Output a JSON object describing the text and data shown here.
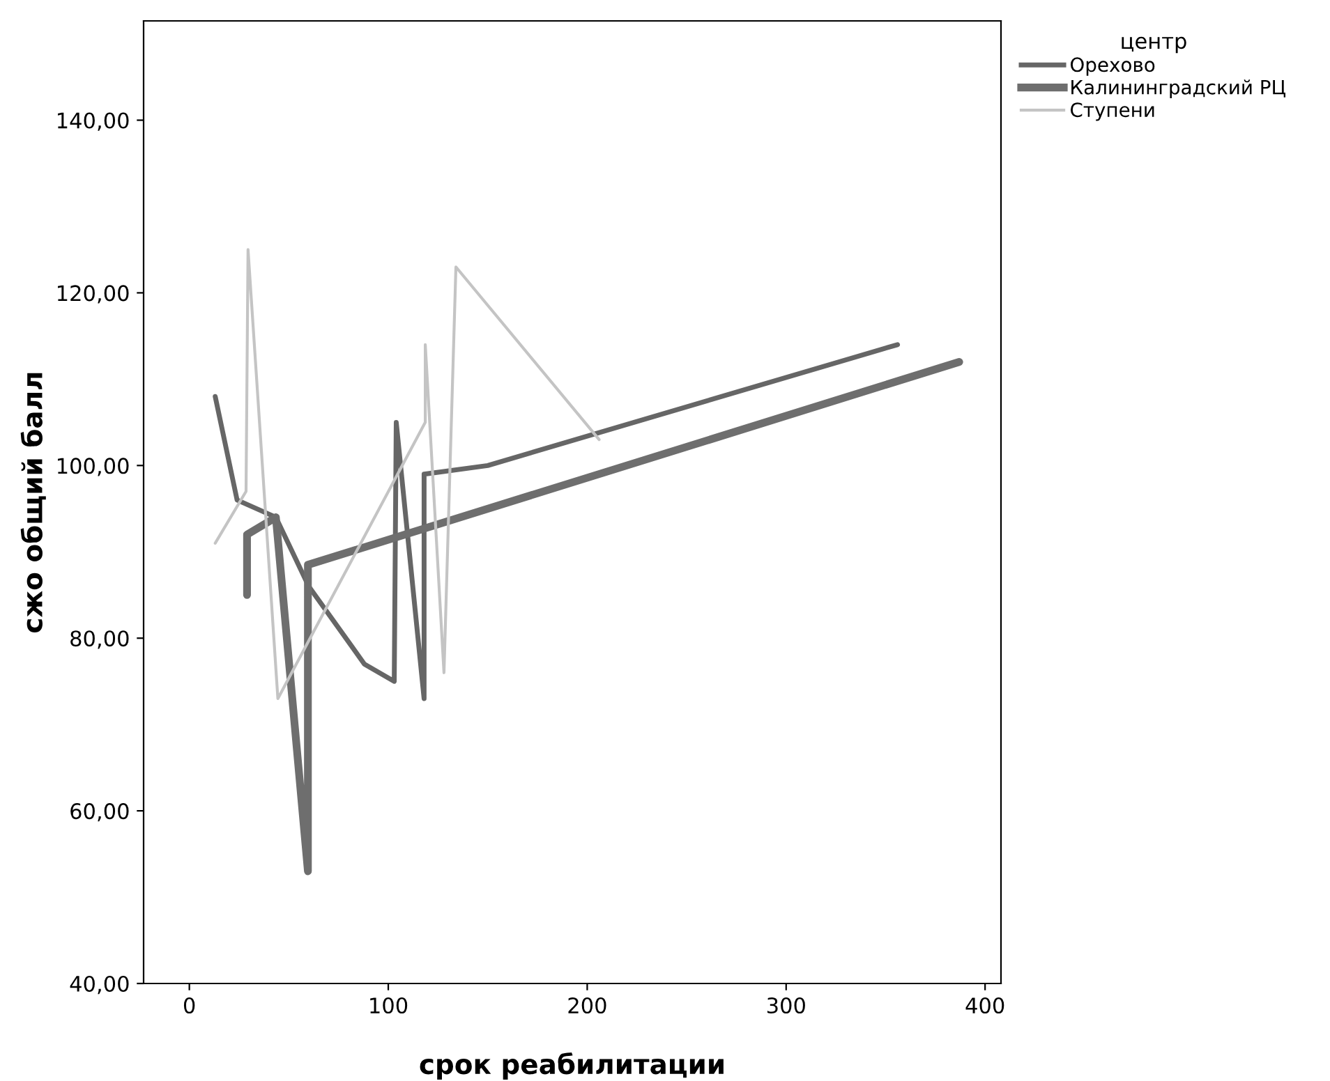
{
  "chart_data": {
    "type": "line",
    "xlabel": "срок реабилитации",
    "ylabel": "сжо общий балл",
    "legend_title": "центр",
    "legend": "top right",
    "grid": false,
    "marker": "none",
    "line_style": "solid",
    "xlim": [
      -23,
      408
    ],
    "xticks": [
      0,
      100,
      200,
      300,
      400
    ],
    "ylim": [
      40,
      151.5
    ],
    "yticks": [
      {
        "value": 40,
        "label": "40,00"
      },
      {
        "value": 60,
        "label": "60,00"
      },
      {
        "value": 80,
        "label": "80,00"
      },
      {
        "value": 100,
        "label": "100,00"
      },
      {
        "value": 120,
        "label": "120,00"
      },
      {
        "value": 140,
        "label": "140,00"
      }
    ],
    "series": [
      {
        "name": "Орехово",
        "color": "#666666",
        "x": [
          13,
          24,
          43.5,
          60,
          88,
          103,
          104,
          118,
          118,
          150,
          356
        ],
        "values": [
          108,
          96,
          94,
          86,
          77,
          75,
          105,
          73,
          99,
          100,
          114
        ]
      },
      {
        "name": "Калининградский РЦ",
        "color": "#6e6e6e",
        "x": [
          29,
          29,
          43.5,
          59.6,
          59.6,
          387
        ],
        "values": [
          85,
          92,
          94,
          53,
          88.5,
          112
        ]
      },
      {
        "name": "Ступени",
        "color": "#c4c4c4",
        "x": [
          13,
          28.5,
          29.5,
          44.5,
          118.6,
          118.6,
          128,
          134,
          206
        ],
        "values": [
          91,
          97,
          125,
          73,
          105,
          114,
          76,
          123,
          103
        ]
      }
    ]
  }
}
